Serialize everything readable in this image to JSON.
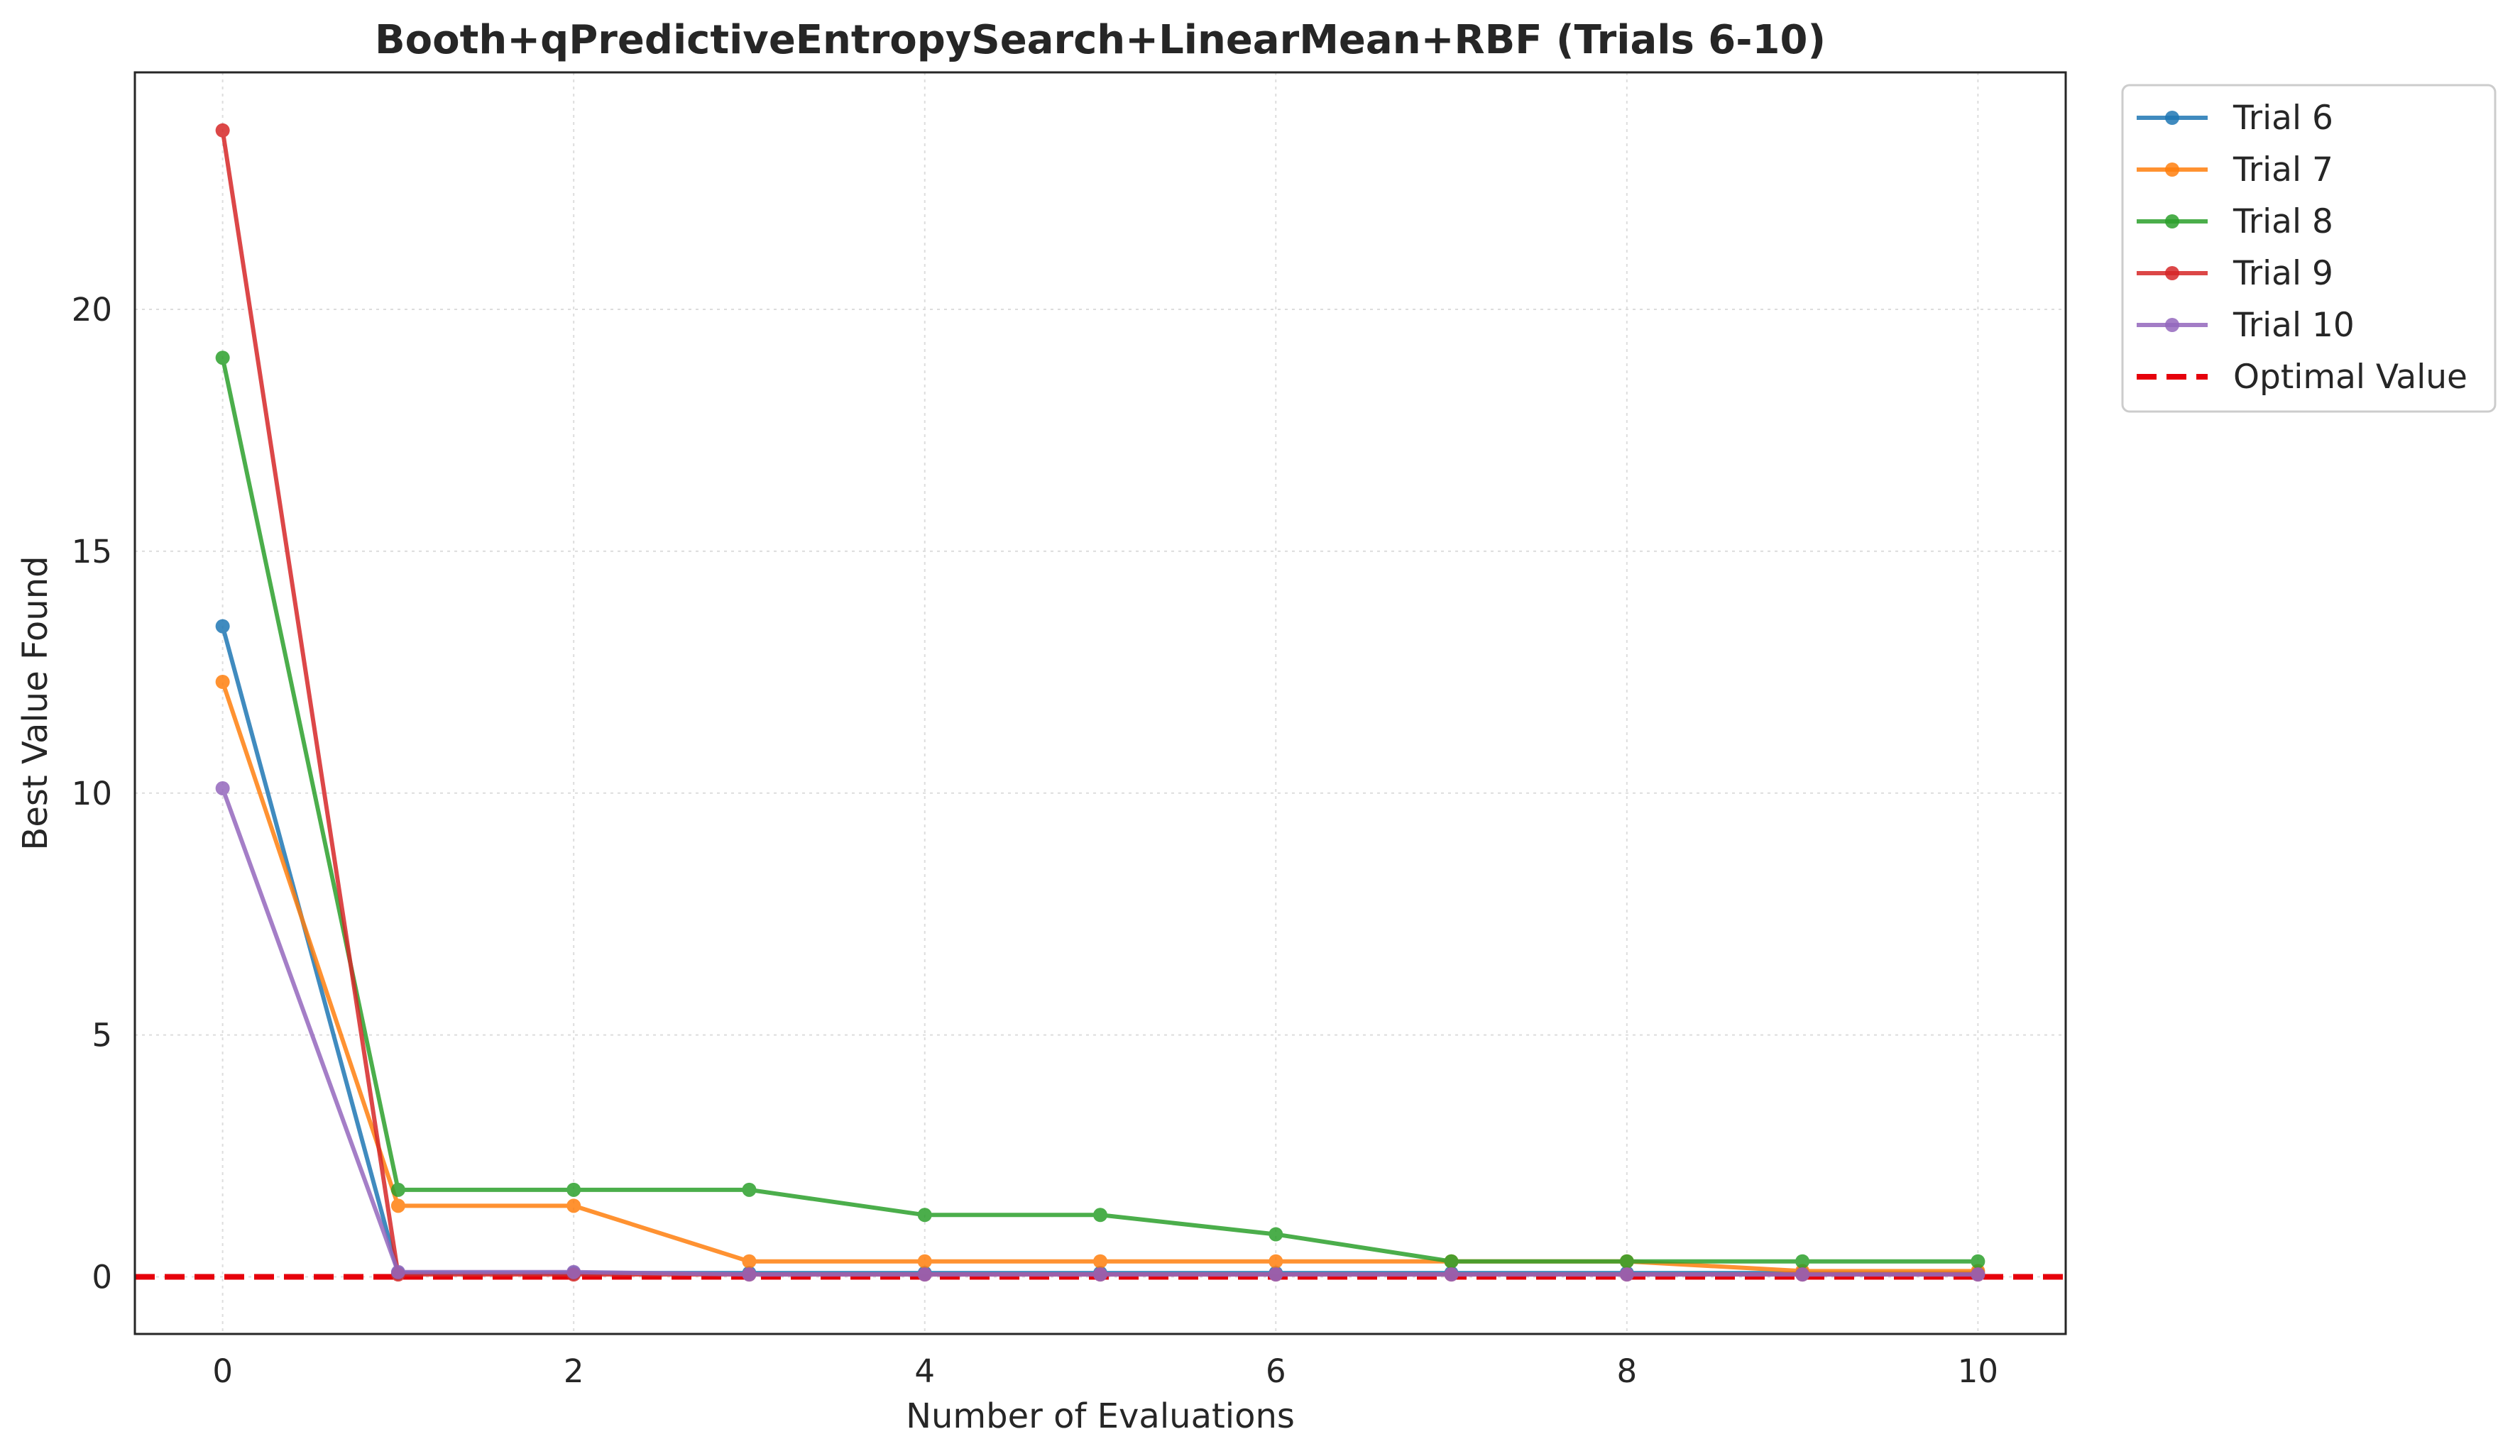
{
  "chart_data": {
    "type": "line",
    "title": "Booth+qPredictiveEntropySearch+LinearMean+RBF (Trials 6-10)",
    "xlabel": "Number of Evaluations",
    "ylabel": "Best Value Found",
    "xlim": [
      -0.5,
      10.5
    ],
    "ylim": [
      -1.18,
      24.9
    ],
    "x_ticks": [
      0,
      2,
      4,
      6,
      8,
      10
    ],
    "y_ticks": [
      0,
      5,
      10,
      15,
      20
    ],
    "grid": true,
    "legend_position": "outside top-right",
    "x": [
      0,
      1,
      2,
      3,
      4,
      5,
      6,
      7,
      8,
      9,
      10
    ],
    "series": [
      {
        "name": "Trial 6",
        "color": "#1f77b4",
        "values": [
          13.45,
          0.08,
          0.08,
          0.08,
          0.08,
          0.08,
          0.08,
          0.08,
          0.08,
          0.08,
          0.08
        ]
      },
      {
        "name": "Trial 7",
        "color": "#ff7f0e",
        "values": [
          12.3,
          1.47,
          1.47,
          0.32,
          0.32,
          0.32,
          0.32,
          0.32,
          0.32,
          0.12,
          0.12
        ]
      },
      {
        "name": "Trial 8",
        "color": "#2ca02c",
        "values": [
          19.0,
          1.8,
          1.8,
          1.8,
          1.28,
          1.28,
          0.88,
          0.32,
          0.32,
          0.32,
          0.32
        ]
      },
      {
        "name": "Trial 9",
        "color": "#d62728",
        "values": [
          23.7,
          0.05,
          0.05,
          0.05,
          0.05,
          0.05,
          0.05,
          0.05,
          0.05,
          0.05,
          0.05
        ]
      },
      {
        "name": "Trial 10",
        "color": "#9467bd",
        "values": [
          10.1,
          0.1,
          0.1,
          0.05,
          0.05,
          0.05,
          0.05,
          0.05,
          0.05,
          0.05,
          0.05
        ]
      }
    ],
    "reference_line": {
      "name": "Optimal Value",
      "y": 0,
      "color": "#e6000b",
      "style": "dashed"
    }
  }
}
